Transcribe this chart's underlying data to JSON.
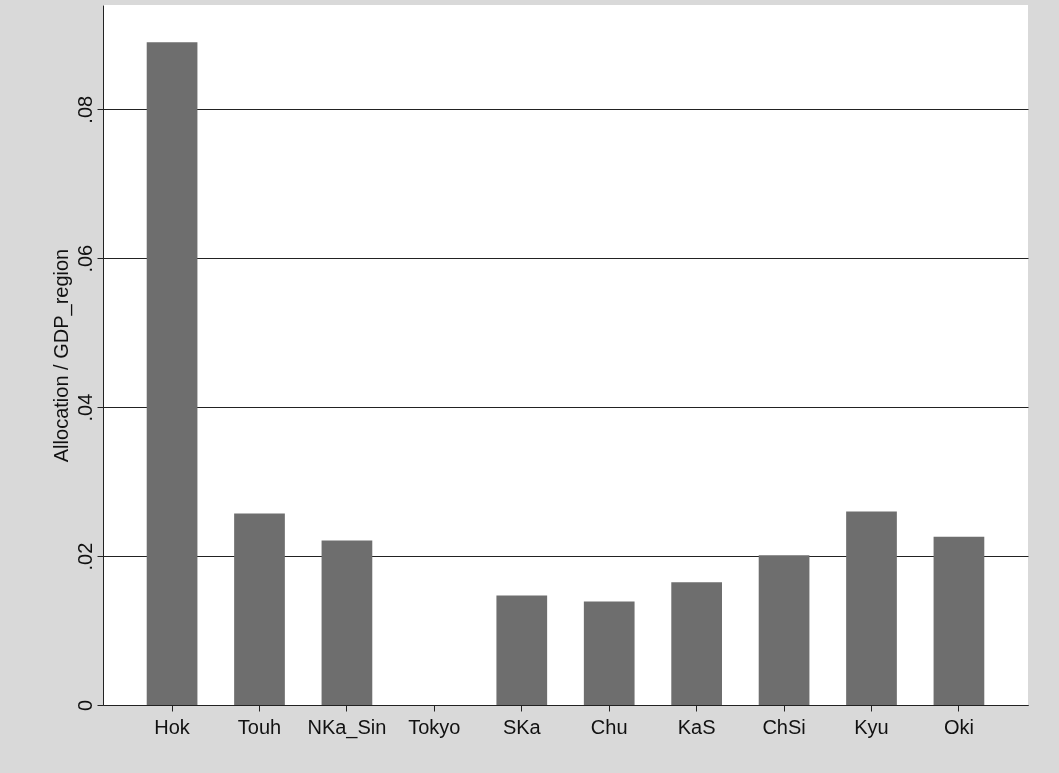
{
  "chart_data": {
    "type": "bar",
    "ylabel": "Allocation / GDP_region",
    "categories": [
      "Hok",
      "Touh",
      "NKa_Sin",
      "Tokyo",
      "SKa",
      "Chu",
      "KaS",
      "ChSi",
      "Kyu",
      "Oki"
    ],
    "values": [
      0.089,
      0.0257,
      0.0221,
      0,
      0.0147,
      0.0139,
      0.0165,
      0.0201,
      0.026,
      0.0226
    ],
    "color": "#6e6e6e",
    "ylim": [
      0,
      0.094
    ],
    "yticks": [
      0,
      {
        "value": 0.02,
        "label": ".02"
      },
      {
        "value": 0.04,
        "label": ".04"
      },
      {
        "value": 0.06,
        "label": ".06"
      },
      {
        "value": 0.08,
        "label": ".08"
      }
    ],
    "grid": "y"
  }
}
